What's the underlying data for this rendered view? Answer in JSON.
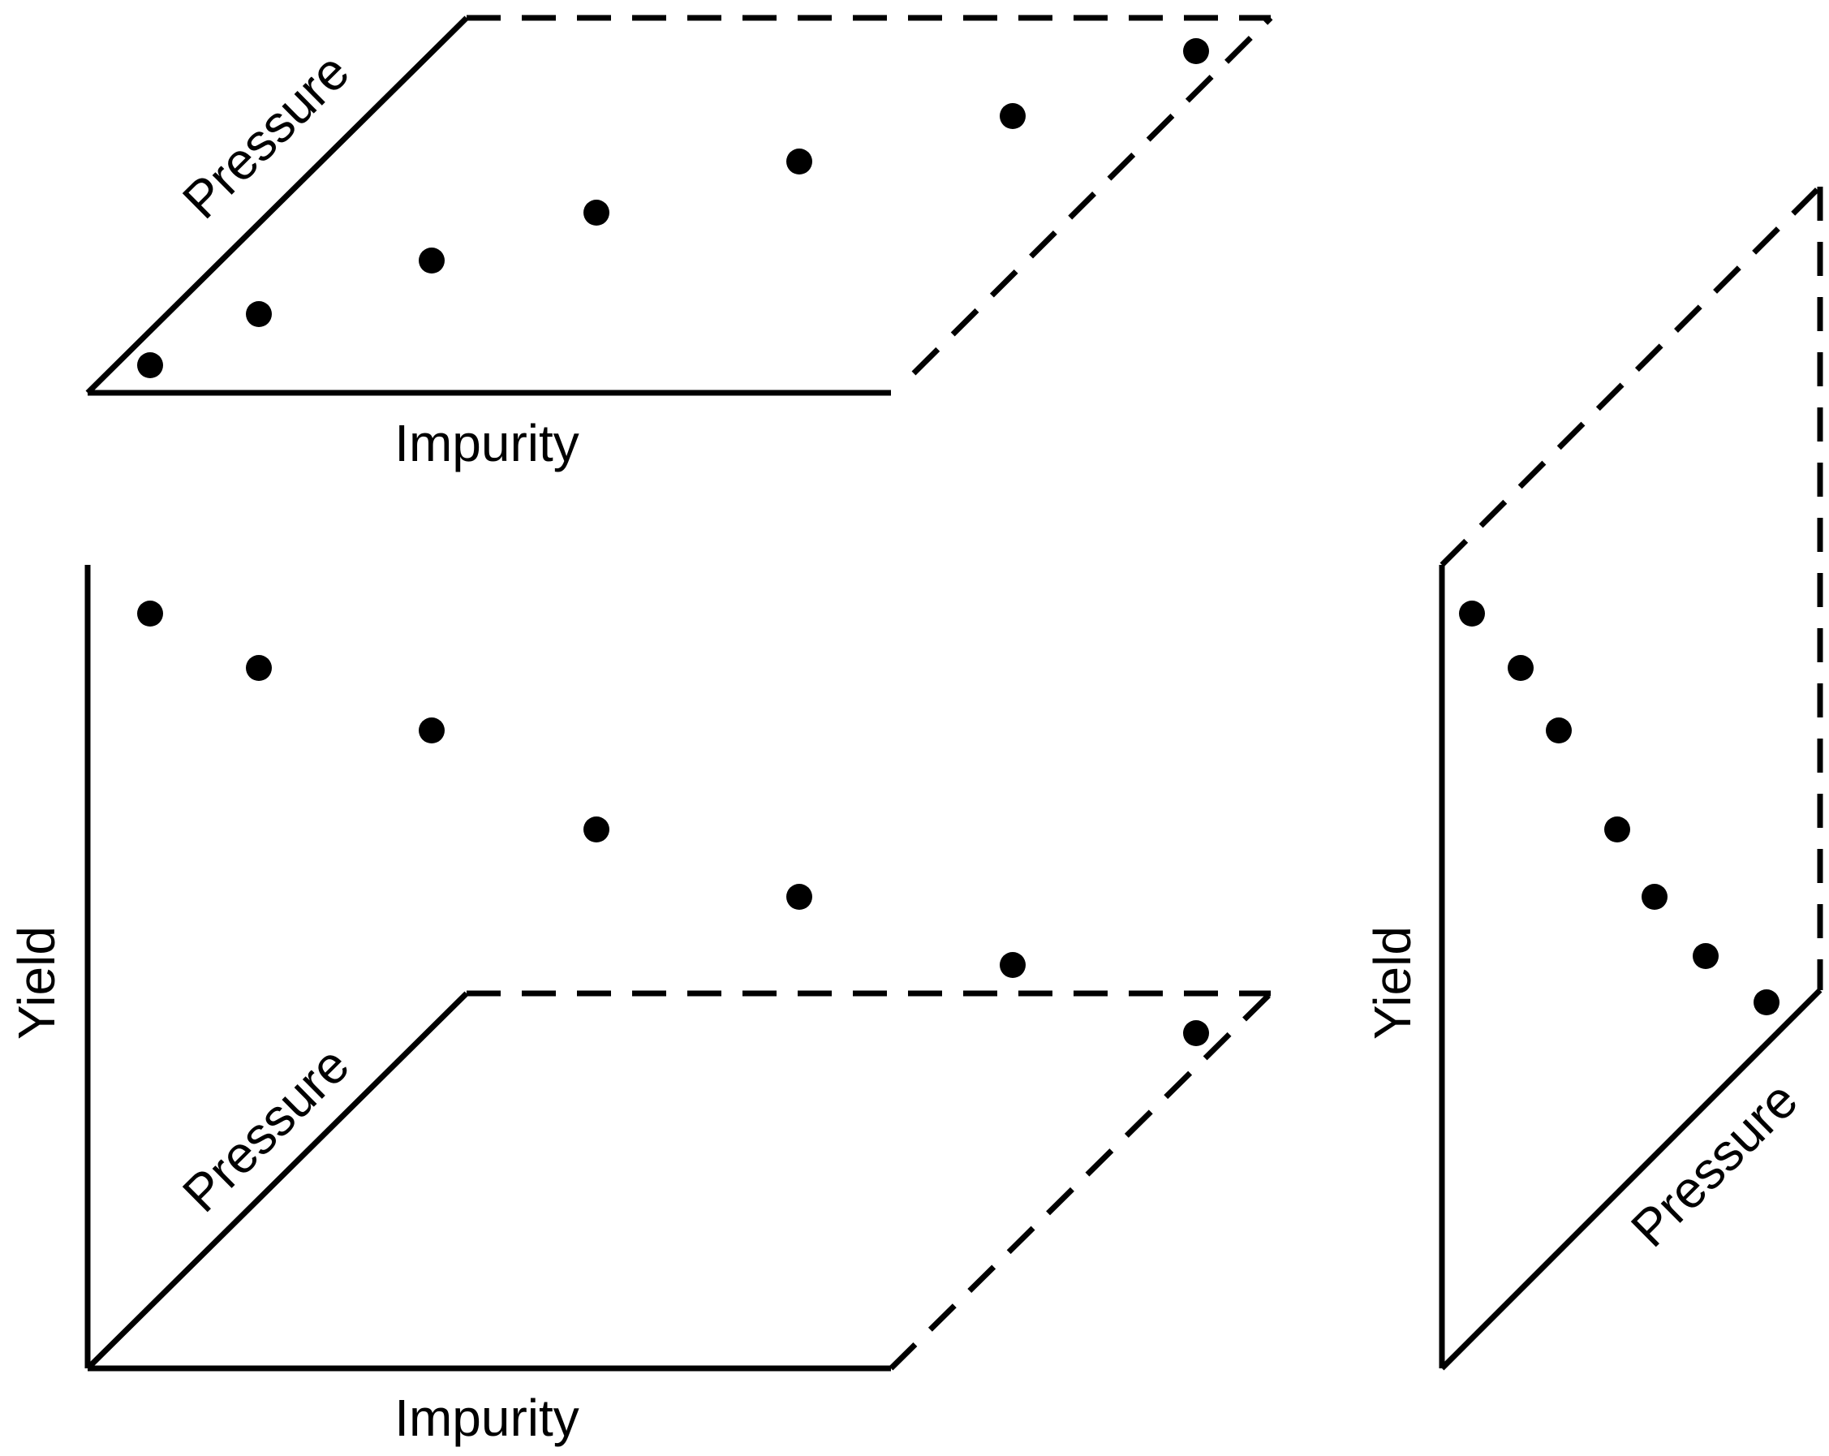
{
  "labels": {
    "pressure": "Pressure",
    "impurity": "Impurity",
    "yield": "Yield"
  },
  "colors": {
    "ink": "#000000",
    "background": "#ffffff"
  },
  "panels": [
    {
      "id": "impurity-pressure",
      "description_axes": [
        "Impurity",
        "Pressure"
      ],
      "points": 7
    },
    {
      "id": "yield-impurity-pressure",
      "description_axes": [
        "Impurity",
        "Pressure",
        "Yield"
      ],
      "points": 7
    },
    {
      "id": "yield-pressure",
      "description_axes": [
        "Pressure",
        "Yield"
      ],
      "points": 7
    }
  ]
}
